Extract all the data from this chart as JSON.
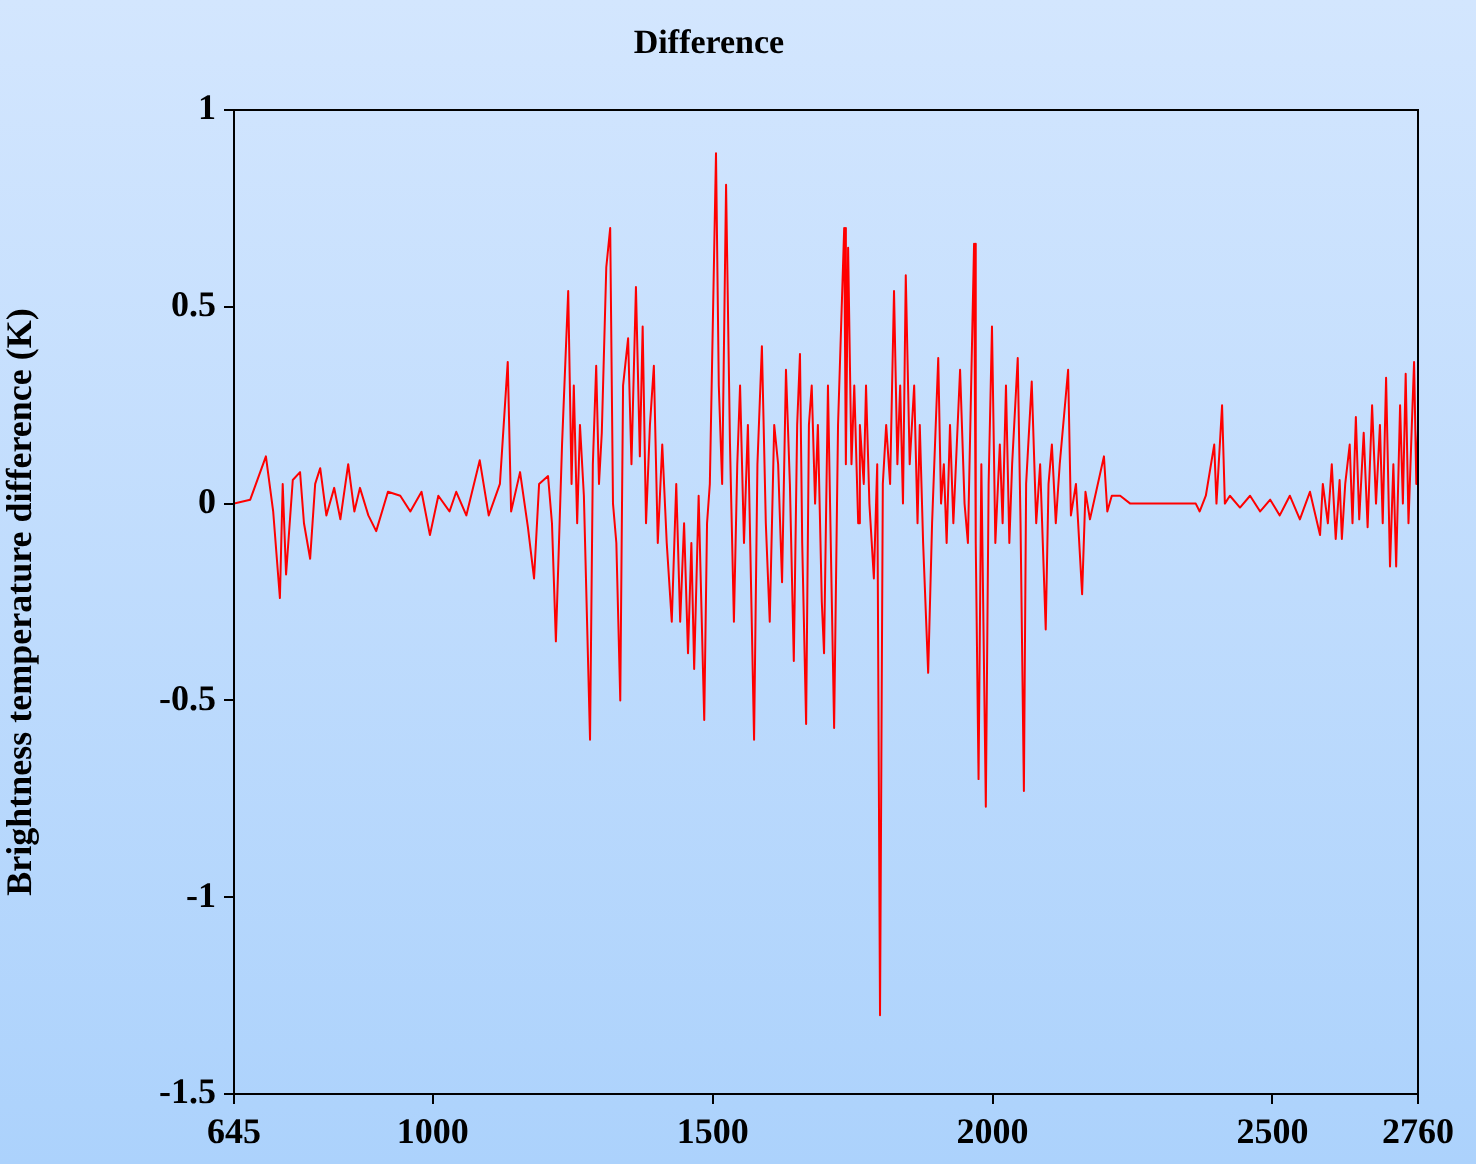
{
  "chart_data": {
    "type": "line",
    "title": "Difference",
    "ylabel": "Brightness temperature difference (K)",
    "xlim": [
      645,
      2760
    ],
    "xticks": [
      645,
      1000,
      1500,
      2000,
      2500,
      2760
    ],
    "ylim": [
      -1.5,
      1
    ],
    "yticks": [
      -1.5,
      -1,
      -0.5,
      0,
      0.5,
      1
    ],
    "grid": false,
    "legend": false,
    "marker": "none",
    "line_style": "solid",
    "series": [
      {
        "color": "#ff0000",
        "x": [
          645,
          674,
          702,
          715,
          727,
          732,
          738,
          750,
          763,
          770,
          781,
          790,
          799,
          810,
          824,
          835,
          849,
          860,
          870,
          885,
          899,
          920,
          942,
          960,
          980,
          995,
          1010,
          1030,
          1042,
          1060,
          1084,
          1100,
          1120,
          1134,
          1140,
          1156,
          1170,
          1181,
          1190,
          1206,
          1213,
          1220,
          1231,
          1242,
          1248,
          1252,
          1258,
          1263,
          1270,
          1281,
          1286,
          1292,
          1297,
          1302,
          1310,
          1317,
          1322,
          1328,
          1335,
          1340,
          1349,
          1355,
          1363,
          1370,
          1375,
          1381,
          1388,
          1395,
          1402,
          1410,
          1418,
          1427,
          1435,
          1442,
          1449,
          1456,
          1462,
          1467,
          1475,
          1485,
          1490,
          1495,
          1506,
          1511,
          1517,
          1524,
          1531,
          1538,
          1544,
          1549,
          1556,
          1563,
          1574,
          1580,
          1588,
          1595,
          1602,
          1610,
          1617,
          1624,
          1631,
          1638,
          1645,
          1651,
          1656,
          1660,
          1667,
          1672,
          1677,
          1683,
          1688,
          1695,
          1699,
          1706,
          1711,
          1717,
          1724,
          1735,
          1738,
          1742,
          1748,
          1753,
          1760,
          1763,
          1770,
          1774,
          1780,
          1788,
          1794,
          1799,
          1804,
          1810,
          1817,
          1824,
          1830,
          1835,
          1840,
          1845,
          1852,
          1860,
          1866,
          1870,
          1876,
          1885,
          1892,
          1903,
          1908,
          1913,
          1918,
          1924,
          1930,
          1942,
          1950,
          1956,
          1967,
          1970,
          1975,
          1980,
          1988,
          1993,
          1999,
          2005,
          2013,
          2018,
          2024,
          2030,
          2035,
          2045,
          2050,
          2056,
          2060,
          2070,
          2078,
          2085,
          2095,
          2100,
          2106,
          2113,
          2120,
          2135,
          2140,
          2149,
          2160,
          2166,
          2174,
          2185,
          2199,
          2205,
          2213,
          2228,
          2246,
          2263,
          2363,
          2370,
          2381,
          2396,
          2400,
          2410,
          2415,
          2424,
          2442,
          2460,
          2478,
          2496,
          2513,
          2531,
          2549,
          2567,
          2585,
          2590,
          2599,
          2606,
          2613,
          2620,
          2624,
          2630,
          2638,
          2643,
          2649,
          2655,
          2663,
          2670,
          2678,
          2685,
          2692,
          2697,
          2703,
          2710,
          2716,
          2721,
          2728,
          2733,
          2738,
          2743,
          2749,
          2753,
          2757,
          2760
        ],
        "values": [
          0,
          0.01,
          0.12,
          -0.02,
          -0.24,
          0.05,
          -0.18,
          0.06,
          0.08,
          -0.05,
          -0.14,
          0.05,
          0.09,
          -0.03,
          0.04,
          -0.04,
          0.1,
          -0.02,
          0.04,
          -0.03,
          -0.07,
          0.03,
          0.02,
          -0.02,
          0.03,
          -0.08,
          0.02,
          -0.02,
          0.03,
          -0.03,
          0.11,
          -0.03,
          0.05,
          0.36,
          -0.02,
          0.08,
          -0.06,
          -0.19,
          0.05,
          0.07,
          -0.05,
          -0.35,
          0.15,
          0.54,
          0.05,
          0.3,
          -0.05,
          0.2,
          0.02,
          -0.6,
          0.1,
          0.35,
          0.05,
          0.18,
          0.6,
          0.7,
          0,
          -0.1,
          -0.5,
          0.3,
          0.42,
          0.1,
          0.55,
          0.12,
          0.45,
          -0.05,
          0.2,
          0.35,
          -0.1,
          0.15,
          -0.1,
          -0.3,
          0.05,
          -0.3,
          -0.05,
          -0.38,
          -0.1,
          -0.42,
          0.02,
          -0.55,
          -0.05,
          0.05,
          0.89,
          0.3,
          0.05,
          0.81,
          0.15,
          -0.3,
          0.1,
          0.3,
          -0.1,
          0.2,
          -0.6,
          0.1,
          0.4,
          -0.05,
          -0.3,
          0.2,
          0.1,
          -0.2,
          0.34,
          0.05,
          -0.4,
          0.2,
          0.38,
          -0.1,
          -0.56,
          0.2,
          0.3,
          0,
          0.2,
          -0.25,
          -0.38,
          0.3,
          -0.1,
          -0.57,
          0.2,
          0.7,
          0.1,
          0.65,
          0.1,
          0.3,
          -0.05,
          0.2,
          0.05,
          0.3,
          0,
          -0.19,
          0.1,
          -1.3,
          0.05,
          0.2,
          0.05,
          0.54,
          0.1,
          0.3,
          0,
          0.58,
          0.1,
          0.3,
          -0.05,
          0.2,
          -0.1,
          -0.43,
          -0.05,
          0.37,
          0,
          0.1,
          -0.1,
          0.2,
          -0.05,
          0.34,
          0,
          -0.1,
          0.66,
          -0.1,
          -0.7,
          0.1,
          -0.77,
          0.05,
          0.45,
          -0.1,
          0.15,
          -0.05,
          0.3,
          -0.1,
          0.1,
          0.37,
          -0.05,
          -0.73,
          0.05,
          0.31,
          -0.05,
          0.1,
          -0.32,
          0.05,
          0.15,
          -0.05,
          0.1,
          0.34,
          -0.03,
          0.05,
          -0.23,
          0.03,
          -0.04,
          0.03,
          0.12,
          -0.02,
          0.02,
          0.02,
          0,
          0,
          0,
          -0.02,
          0.02,
          0.15,
          0,
          0.25,
          0,
          0.02,
          -0.01,
          0.02,
          -0.02,
          0.01,
          -0.03,
          0.02,
          -0.04,
          0.03,
          -0.08,
          0.05,
          -0.05,
          0.1,
          -0.09,
          0.06,
          -0.09,
          0.05,
          0.15,
          -0.05,
          0.22,
          -0.04,
          0.18,
          -0.06,
          0.25,
          0,
          0.2,
          -0.05,
          0.32,
          -0.16,
          0.1,
          -0.16,
          0.25,
          0,
          0.33,
          -0.05,
          0.2,
          0.36,
          0.05,
          0.19
        ]
      }
    ]
  }
}
